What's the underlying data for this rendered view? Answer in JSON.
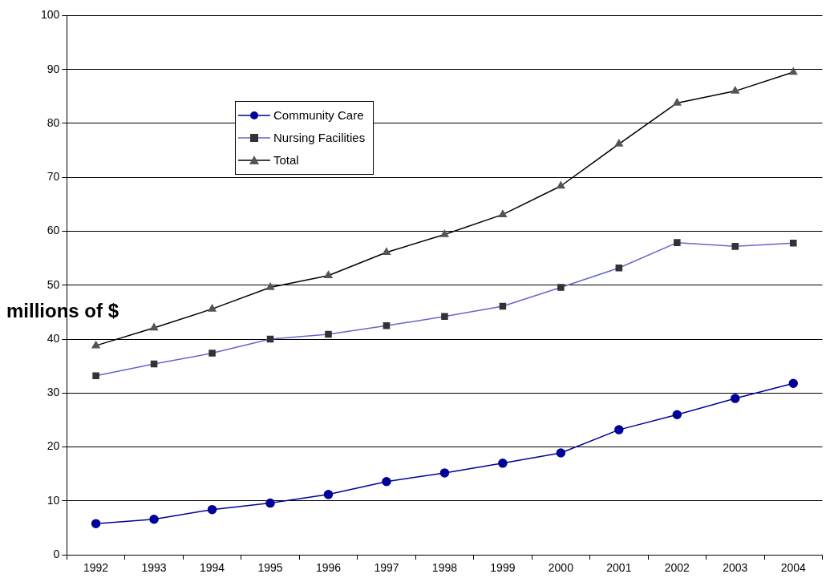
{
  "chart_data": {
    "type": "line",
    "ylabel": "millions of $",
    "categories": [
      "1992",
      "1993",
      "1994",
      "1995",
      "1996",
      "1997",
      "1998",
      "1999",
      "2000",
      "2001",
      "2002",
      "2003",
      "2004"
    ],
    "series": [
      {
        "name": "Community Care",
        "color": "#000099",
        "marker": "circle",
        "values": [
          5.8,
          6.6,
          8.4,
          9.6,
          11.2,
          13.6,
          15.2,
          17.0,
          18.9,
          23.2,
          26.0,
          29.0,
          31.8
        ]
      },
      {
        "name": "Nursing Facilities",
        "color": "#6666cc",
        "marker": "square",
        "values": [
          33.2,
          35.4,
          37.4,
          40.0,
          40.9,
          42.5,
          44.2,
          46.1,
          49.6,
          53.2,
          57.9,
          57.2,
          57.8
        ]
      },
      {
        "name": "Total",
        "color": "#000000",
        "marker": "triangle",
        "values": [
          38.8,
          42.1,
          45.6,
          49.6,
          51.8,
          56.1,
          59.4,
          63.1,
          68.4,
          76.2,
          83.8,
          86.0,
          89.5
        ]
      }
    ],
    "ylim": [
      0,
      100
    ],
    "yticks": [
      0,
      10,
      20,
      30,
      40,
      50,
      60,
      70,
      80,
      90,
      100
    ],
    "grid": "y",
    "legend": "top left"
  }
}
